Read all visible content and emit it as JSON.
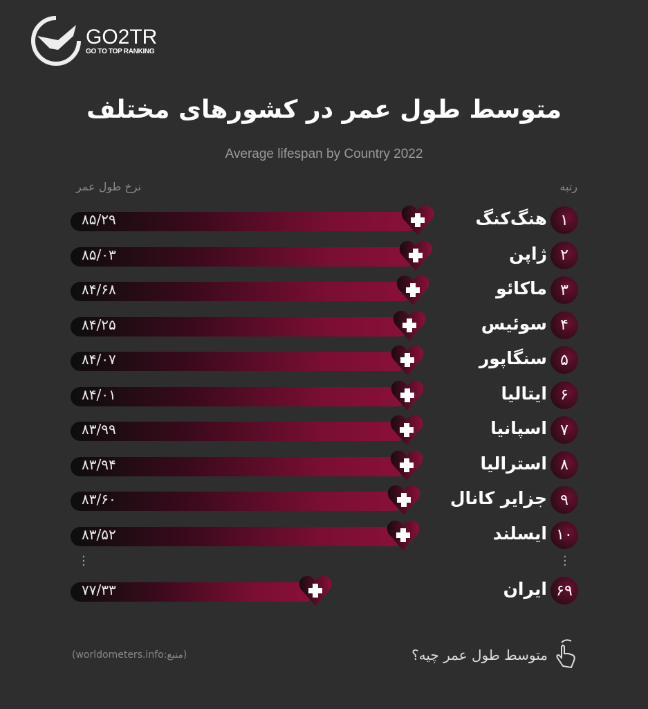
{
  "logo": {
    "main": "GO2TR",
    "sub": "GO TO TOP RANKING"
  },
  "title": "متوسط طول عمر در کشورهای مختلف",
  "subtitle": "Average lifespan by Country 2022",
  "headers": {
    "rank": "رتبه",
    "rate": "نرخ طول عمر"
  },
  "colors": {
    "background": "#2e2e2e",
    "bar_end": "#8a1038",
    "bar_start": "#0d0d0d"
  },
  "chart_data": {
    "type": "bar",
    "orientation": "horizontal",
    "title": "متوسط طول عمر در کشورهای مختلف",
    "subtitle": "Average lifespan by Country 2022",
    "categories": [
      "هنگ‌کنگ",
      "ژاپن",
      "ماکائو",
      "سوئیس",
      "سنگاپور",
      "ایتالیا",
      "اسپانیا",
      "استرالیا",
      "جزایر کانال",
      "ایسلند",
      "ایران"
    ],
    "ranks": [
      "۱",
      "۲",
      "۳",
      "۴",
      "۵",
      "۶",
      "۷",
      "۸",
      "۹",
      "۱۰",
      "۶۹"
    ],
    "values": [
      85.29,
      85.03,
      84.68,
      84.25,
      84.07,
      84.01,
      83.99,
      83.94,
      83.6,
      83.52,
      77.33
    ],
    "labels": [
      "۸۵/۲۹",
      "۸۵/۰۳",
      "۸۴/۶۸",
      "۸۴/۲۵",
      "۸۴/۰۷",
      "۸۴/۰۱",
      "۸۳/۹۹",
      "۸۳/۹۴",
      "۸۳/۶۰",
      "۸۳/۵۲",
      "۷۷/۳۳"
    ]
  },
  "footer": {
    "source": "(منبع:worldometers.info)",
    "question": "متوسط طول عمر چیه؟"
  }
}
